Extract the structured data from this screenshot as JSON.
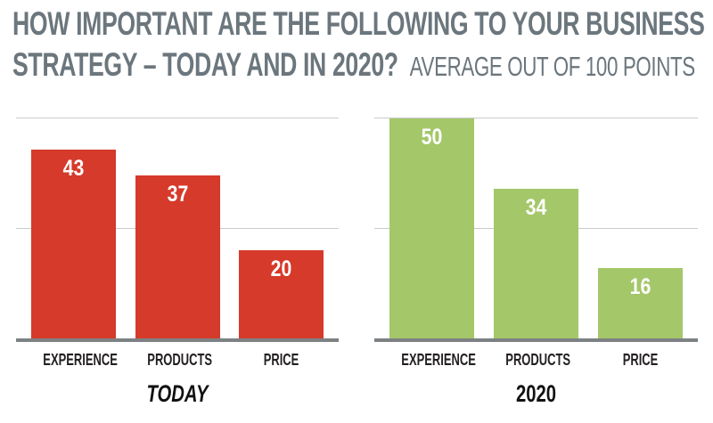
{
  "title": {
    "line1": "HOW IMPORTANT ARE THE FOLLOWING TO YOUR BUSINESS",
    "line2": "STRATEGY – TODAY AND IN 2020?",
    "subtitle": "AVERAGE OUT OF 100 POINTS",
    "color": "#6b767d"
  },
  "chart_data": [
    {
      "type": "bar",
      "title": "TODAY",
      "categories": [
        "EXPERIENCE",
        "PRODUCTS",
        "PRICE"
      ],
      "values": [
        43,
        37,
        20
      ],
      "bar_color": "#d53a2a",
      "value_label_color": "#ffffff",
      "ylim": [
        0,
        50
      ],
      "gridlines": [
        25,
        50
      ],
      "grid_color": "#c9cbcd",
      "baseline_color": "#7d8184",
      "legend_position": "none"
    },
    {
      "type": "bar",
      "title": "2020",
      "categories": [
        "EXPERIENCE",
        "PRODUCTS",
        "PRICE"
      ],
      "values": [
        50,
        34,
        16
      ],
      "bar_color": "#a4c76a",
      "value_label_color": "#ffffff",
      "ylim": [
        0,
        50
      ],
      "gridlines": [
        25,
        50
      ],
      "grid_color": "#c9cbcd",
      "baseline_color": "#7d8184",
      "legend_position": "none"
    }
  ]
}
